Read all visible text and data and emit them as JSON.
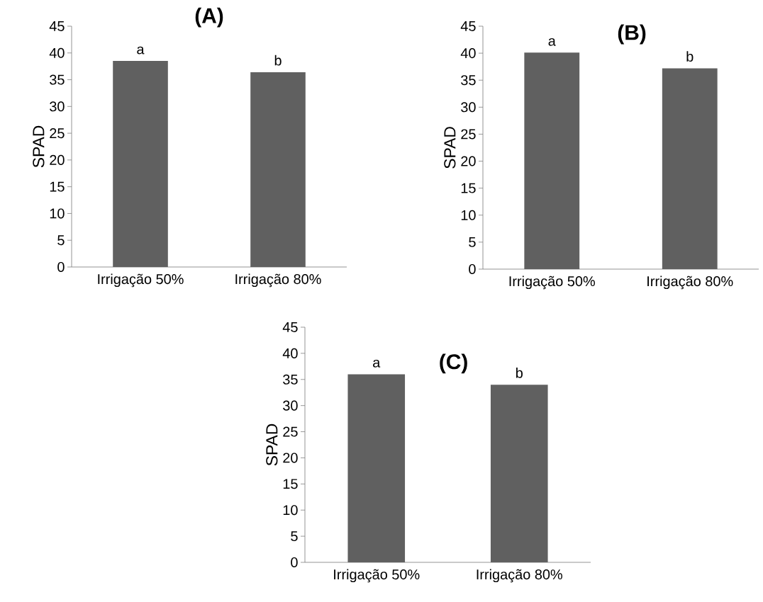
{
  "chart_data": [
    {
      "type": "bar",
      "title": "(A)",
      "ylabel": "SPAD",
      "categories": [
        "Irrigação 50%",
        "Irrigação 80%"
      ],
      "values": [
        38.5,
        36.4
      ],
      "color": "#606060",
      "ylim": [
        0,
        45
      ],
      "yticks": [
        0,
        5,
        10,
        15,
        20,
        25,
        30,
        35,
        40,
        45
      ],
      "grid": false,
      "annotations": [
        {
          "text": "a",
          "x": "Irrigação 50%",
          "y": 38.5
        },
        {
          "text": "b",
          "x": "Irrigação 80%",
          "y": 36.4
        }
      ]
    },
    {
      "type": "bar",
      "title": "(B)",
      "ylabel": "SPAD",
      "categories": [
        "Irrigação 50%",
        "Irrigação 80%"
      ],
      "values": [
        40.1,
        37.2
      ],
      "color": "#606060",
      "ylim": [
        0,
        45
      ],
      "yticks": [
        0,
        5,
        10,
        15,
        20,
        25,
        30,
        35,
        40,
        45
      ],
      "grid": false,
      "annotations": [
        {
          "text": "a",
          "x": "Irrigação 50%",
          "y": 40.1
        },
        {
          "text": "b",
          "x": "Irrigação 80%",
          "y": 37.2
        }
      ]
    },
    {
      "type": "bar",
      "title": "(C)",
      "ylabel": "SPAD",
      "categories": [
        "Irrigação 50%",
        "Irrigação 80%"
      ],
      "values": [
        36.0,
        34.0
      ],
      "color": "#606060",
      "ylim": [
        0,
        45
      ],
      "yticks": [
        0,
        5,
        10,
        15,
        20,
        25,
        30,
        35,
        40,
        45
      ],
      "grid": false,
      "annotations": [
        {
          "text": "a",
          "x": "Irrigação 50%",
          "y": 36.0
        },
        {
          "text": "b",
          "x": "Irrigação 80%",
          "y": 34.0
        }
      ]
    }
  ]
}
